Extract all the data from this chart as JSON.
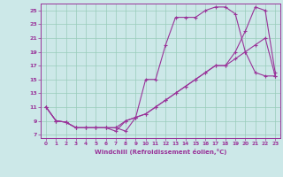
{
  "xlabel": "Windchill (Refroidissement éolien,°C)",
  "bg_color": "#cce8e8",
  "line_color": "#993399",
  "grid_color": "#99ccbb",
  "xlim": [
    -0.5,
    23.5
  ],
  "ylim": [
    6.5,
    26.0
  ],
  "xticks": [
    0,
    1,
    2,
    3,
    4,
    5,
    6,
    7,
    8,
    9,
    10,
    11,
    12,
    13,
    14,
    15,
    16,
    17,
    18,
    19,
    20,
    21,
    22,
    23
  ],
  "yticks": [
    7,
    9,
    11,
    13,
    15,
    17,
    19,
    21,
    23,
    25
  ],
  "curve1_x": [
    0,
    1,
    2,
    3,
    4,
    5,
    6,
    7,
    8,
    9,
    10,
    11,
    12,
    13,
    14,
    15,
    16,
    17,
    18,
    19,
    20,
    21,
    22,
    23
  ],
  "curve1_y": [
    11,
    9,
    8.8,
    8,
    8,
    8,
    8,
    8,
    7.5,
    9.5,
    15,
    15,
    20,
    24,
    24,
    24,
    25,
    25.5,
    25.5,
    24.5,
    19,
    16,
    15.5,
    15.5
  ],
  "curve2_x": [
    0,
    1,
    2,
    3,
    4,
    5,
    6,
    7,
    8,
    9,
    10,
    11,
    12,
    13,
    14,
    15,
    16,
    17,
    18,
    19,
    20,
    21,
    22,
    23
  ],
  "curve2_y": [
    11,
    9,
    8.8,
    8,
    8,
    8,
    8,
    8,
    9,
    9.5,
    10,
    11,
    12,
    13,
    14,
    15,
    16,
    17,
    17,
    18,
    19,
    20,
    21,
    15.5
  ],
  "curve3_x": [
    0,
    1,
    2,
    3,
    4,
    5,
    6,
    7,
    8,
    9,
    10,
    11,
    12,
    13,
    14,
    15,
    16,
    17,
    18,
    19,
    20,
    21,
    22,
    23
  ],
  "curve3_y": [
    11,
    9,
    8.8,
    8,
    8,
    8,
    8,
    7.5,
    9,
    9.5,
    10,
    11,
    12,
    13,
    14,
    15,
    16,
    17,
    17,
    19,
    22,
    25.5,
    25,
    16
  ]
}
